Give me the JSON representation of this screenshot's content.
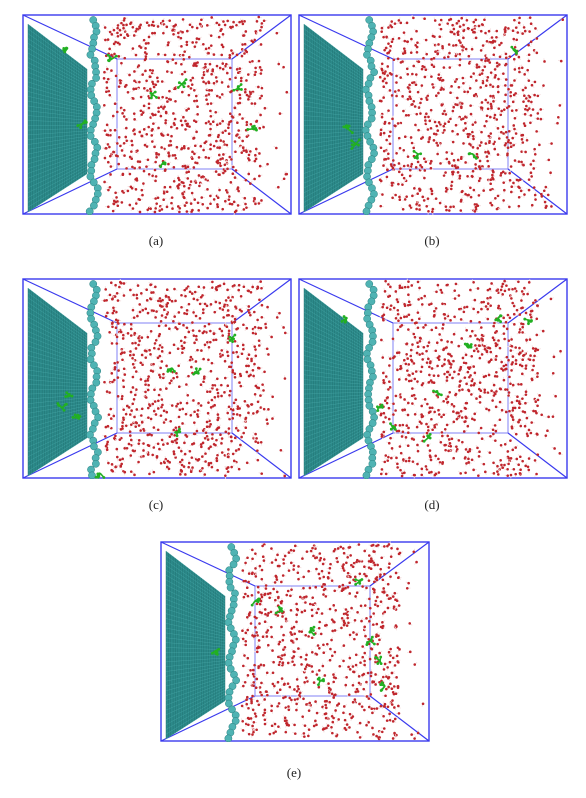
{
  "figure": {
    "panels": [
      {
        "id": "a",
        "caption": "(a)"
      },
      {
        "id": "b",
        "caption": "(b)"
      },
      {
        "id": "c",
        "caption": "(c)"
      },
      {
        "id": "d",
        "caption": "(d)"
      },
      {
        "id": "e",
        "caption": "(e)"
      }
    ]
  },
  "colors": {
    "box_edge": "#3a3aee",
    "graphene_sheet": "#2c8a8a",
    "graphene_atom": "#4fb3b3",
    "water_oxygen": "#c0262d",
    "water_hydrogen": "#f3dede",
    "solute": "#22b022"
  }
}
